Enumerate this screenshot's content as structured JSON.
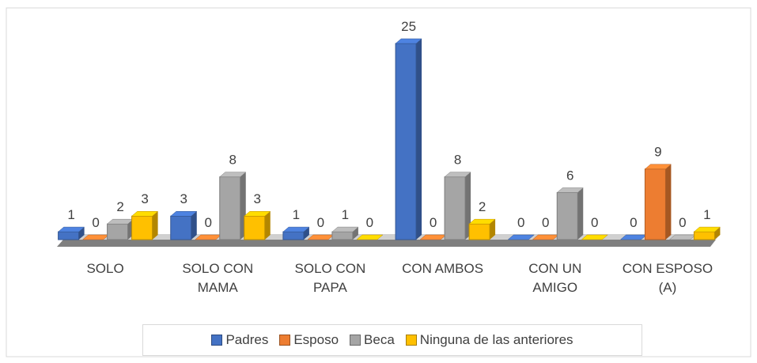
{
  "chart_data": {
    "type": "bar3d",
    "categories": [
      "SOLO",
      "SOLO CON MAMA",
      "SOLO CON PAPA",
      "CON AMBOS",
      "CON UN AMIGO",
      "CON ESPOSO (A)"
    ],
    "series": [
      {
        "name": "Padres",
        "color": "#4472c4",
        "values": [
          1,
          3,
          1,
          25,
          0,
          0
        ]
      },
      {
        "name": "Esposo",
        "color": "#ed7d31",
        "values": [
          0,
          0,
          0,
          0,
          0,
          9
        ]
      },
      {
        "name": "Beca",
        "color": "#a5a5a5",
        "values": [
          2,
          8,
          1,
          8,
          6,
          0
        ]
      },
      {
        "name": "Ninguna de las anteriores",
        "color": "#ffc000",
        "values": [
          3,
          3,
          0,
          2,
          0,
          1
        ]
      }
    ],
    "ylim": [
      0,
      25
    ],
    "legend": "bottom"
  }
}
